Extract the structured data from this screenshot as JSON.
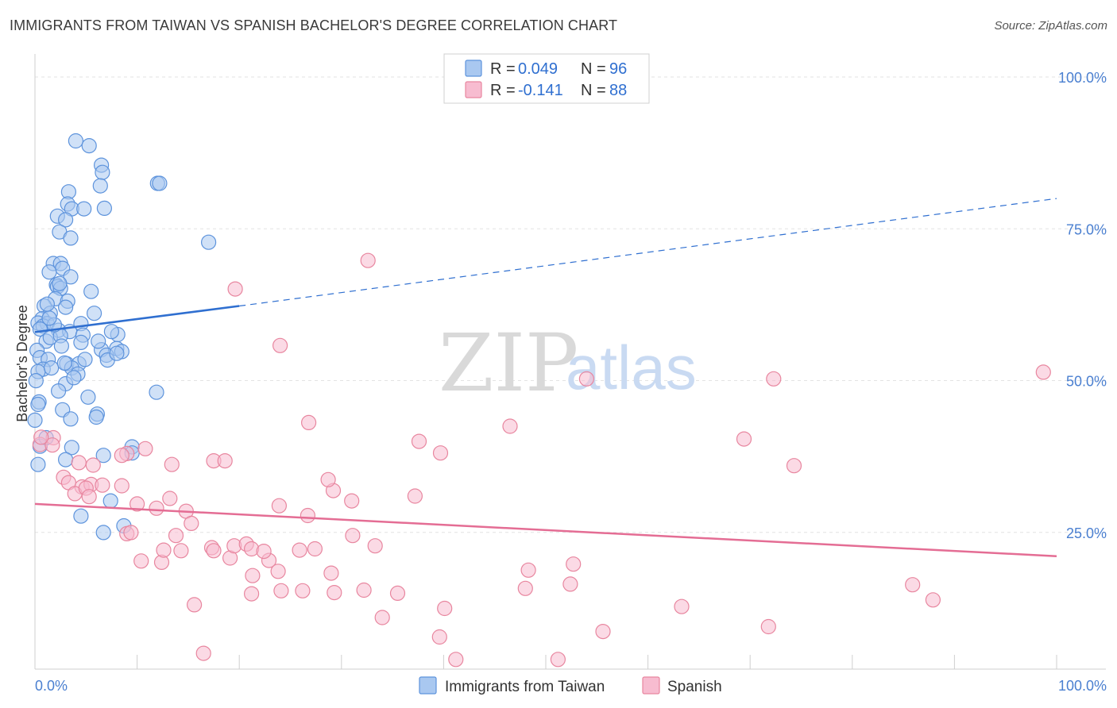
{
  "header": {
    "title": "IMMIGRANTS FROM TAIWAN VS SPANISH BACHELOR'S DEGREE CORRELATION CHART",
    "source": "Source: ZipAtlas.com"
  },
  "watermark": {
    "part1": "ZIP",
    "part2": "atlas"
  },
  "colors": {
    "taiwan_fill": "#a9c8f0",
    "taiwan_stroke": "#5d93dc",
    "taiwan_line": "#2f6fd0",
    "spanish_fill": "#f7bcd0",
    "spanish_stroke": "#e8869f",
    "spanish_line": "#e46d94",
    "grid": "#e3e3e3",
    "tick_text": "#4a7fd0"
  },
  "chart_data": {
    "type": "scatter",
    "title": "IMMIGRANTS FROM TAIWAN VS SPANISH BACHELOR'S DEGREE CORRELATION CHART",
    "xlabel": "",
    "ylabel": "Bachelor's Degree",
    "xlim": [
      0,
      100
    ],
    "ylim": [
      0,
      100
    ],
    "x_tick_labels": [
      "0.0%",
      "100.0%"
    ],
    "y_tick_labels": [
      "100.0%",
      "75.0%",
      "50.0%",
      "25.0%"
    ],
    "y_ticks": [
      100,
      75,
      50,
      25
    ],
    "grid": true,
    "legend": {
      "placement": "top-center",
      "entries": [
        {
          "r_label": "R = ",
          "r_value": "0.049",
          "n_label": "N = ",
          "n_value": "96"
        },
        {
          "r_label": "R = ",
          "r_value": "-0.141",
          "n_label": "N = ",
          "n_value": "88"
        }
      ]
    },
    "bottom_legend": [
      "Immigrants from Taiwan",
      "Spanish"
    ],
    "series": [
      {
        "name": "Immigrants from Taiwan",
        "trend": {
          "x0": 0,
          "y0": 55.5,
          "x1": 20,
          "y1": 59.8,
          "dash_x1": 100,
          "dash_y1": 77.5
        },
        "points": [
          [
            4,
            87
          ],
          [
            5.3,
            86.2
          ],
          [
            6.5,
            83
          ],
          [
            6.6,
            81.8
          ],
          [
            6.4,
            79.6
          ],
          [
            12,
            80
          ],
          [
            12.2,
            80
          ],
          [
            3.3,
            78.6
          ],
          [
            3.2,
            76.6
          ],
          [
            3.6,
            75.8
          ],
          [
            4.8,
            75.8
          ],
          [
            6.8,
            75.9
          ],
          [
            2.2,
            74.6
          ],
          [
            3,
            74
          ],
          [
            2.4,
            72
          ],
          [
            3.5,
            71
          ],
          [
            17,
            70.3
          ],
          [
            1.8,
            66.8
          ],
          [
            2.5,
            66.8
          ],
          [
            2.7,
            66
          ],
          [
            1.4,
            65.4
          ],
          [
            3.5,
            64.6
          ],
          [
            2.1,
            63.3
          ],
          [
            2.2,
            63
          ],
          [
            2.5,
            62.7
          ],
          [
            5.5,
            62.2
          ],
          [
            2,
            61
          ],
          [
            3.2,
            60.6
          ],
          [
            0.9,
            59.8
          ],
          [
            3,
            59.6
          ],
          [
            1.5,
            58.6
          ],
          [
            0.7,
            57.7
          ],
          [
            0.3,
            57
          ],
          [
            1.2,
            56.9
          ],
          [
            4.5,
            56.9
          ],
          [
            0.8,
            56.5
          ],
          [
            0.5,
            56
          ],
          [
            2.3,
            55.8
          ],
          [
            3.4,
            55.6
          ],
          [
            4.7,
            55
          ],
          [
            8.1,
            55.1
          ],
          [
            1.1,
            54
          ],
          [
            1.5,
            54.6
          ],
          [
            2.5,
            54.9
          ],
          [
            4.5,
            53.8
          ],
          [
            0.2,
            52.5
          ],
          [
            6.5,
            52.6
          ],
          [
            8,
            52.8
          ],
          [
            8.5,
            52.3
          ],
          [
            7,
            51.7
          ],
          [
            7.1,
            50.9
          ],
          [
            8,
            52
          ],
          [
            0.5,
            51.3
          ],
          [
            1.3,
            51
          ],
          [
            3.1,
            50.3
          ],
          [
            4.3,
            50.3
          ],
          [
            0.8,
            49.4
          ],
          [
            0.3,
            49
          ],
          [
            1.6,
            49.6
          ],
          [
            3.6,
            49.6
          ],
          [
            4.2,
            48.6
          ],
          [
            3,
            47
          ],
          [
            2.3,
            45.8
          ],
          [
            11.9,
            45.6
          ],
          [
            0.4,
            44
          ],
          [
            0.3,
            43.6
          ],
          [
            2.7,
            42.7
          ],
          [
            6.1,
            42
          ],
          [
            3.5,
            41.2
          ],
          [
            6,
            41.5
          ],
          [
            0,
            41
          ],
          [
            3.6,
            36.5
          ],
          [
            9.5,
            36.6
          ],
          [
            6.7,
            35.2
          ],
          [
            9.5,
            35.6
          ],
          [
            3,
            34.5
          ],
          [
            0.3,
            33.7
          ],
          [
            7.4,
            27.7
          ],
          [
            4.5,
            25.2
          ],
          [
            8.7,
            23.6
          ],
          [
            6.7,
            22.5
          ],
          [
            0.5,
            36.7
          ],
          [
            1.1,
            38.1
          ],
          [
            1.9,
            56.7
          ],
          [
            1.4,
            57.8
          ],
          [
            2.9,
            50.4
          ],
          [
            4.9,
            51
          ],
          [
            2.6,
            53.2
          ],
          [
            5.8,
            58.6
          ],
          [
            1.2,
            60.1
          ],
          [
            6.2,
            54
          ],
          [
            7.5,
            55.6
          ],
          [
            3.8,
            48
          ],
          [
            0.1,
            47.5
          ],
          [
            5.2,
            44.8
          ],
          [
            2.4,
            63.5
          ]
        ]
      },
      {
        "name": "Spanish",
        "trend": {
          "x0": 0,
          "y0": 27.2,
          "x1": 100,
          "y1": 18.6
        },
        "points": [
          [
            0.5,
            37
          ],
          [
            1.8,
            38.1
          ],
          [
            1.7,
            36.9
          ],
          [
            0.6,
            38.2
          ],
          [
            9,
            35.5
          ],
          [
            10.8,
            36.3
          ],
          [
            2.8,
            31.6
          ],
          [
            4.3,
            34
          ],
          [
            5.7,
            33.6
          ],
          [
            8.5,
            35.2
          ],
          [
            13.4,
            33.7
          ],
          [
            17.5,
            34.3
          ],
          [
            18.6,
            34.3
          ],
          [
            3.3,
            30.7
          ],
          [
            4.6,
            30
          ],
          [
            5.5,
            30.4
          ],
          [
            6.6,
            30.3
          ],
          [
            8.5,
            30.2
          ],
          [
            3.9,
            28.9
          ],
          [
            5,
            29.8
          ],
          [
            5.3,
            28.4
          ],
          [
            10,
            27.2
          ],
          [
            13.2,
            28.1
          ],
          [
            14.8,
            26
          ],
          [
            11.9,
            26.5
          ],
          [
            23.9,
            26.9
          ],
          [
            26.7,
            25.3
          ],
          [
            29.2,
            29.4
          ],
          [
            31,
            27.7
          ],
          [
            37.2,
            28.5
          ],
          [
            28.7,
            31.2
          ],
          [
            37.6,
            37.5
          ],
          [
            39.7,
            35.6
          ],
          [
            26.8,
            40.6
          ],
          [
            46.5,
            40
          ],
          [
            54,
            47.8
          ],
          [
            72.3,
            47.8
          ],
          [
            69.4,
            37.9
          ],
          [
            74.3,
            33.5
          ],
          [
            98.7,
            48.9
          ],
          [
            32.6,
            67.3
          ],
          [
            19.6,
            62.6
          ],
          [
            24,
            53.3
          ],
          [
            15.3,
            24
          ],
          [
            9,
            22.3
          ],
          [
            9.4,
            22.5
          ],
          [
            10.4,
            17.8
          ],
          [
            12.4,
            17.6
          ],
          [
            12.6,
            19.6
          ],
          [
            14.3,
            19.5
          ],
          [
            17.3,
            20
          ],
          [
            17.5,
            19.5
          ],
          [
            19.1,
            18.3
          ],
          [
            19.5,
            20.3
          ],
          [
            20.7,
            20.6
          ],
          [
            21.2,
            19.8
          ],
          [
            22.9,
            17.9
          ],
          [
            22.4,
            19.4
          ],
          [
            25.9,
            19.6
          ],
          [
            27.4,
            19.8
          ],
          [
            31.1,
            22
          ],
          [
            33.3,
            20.3
          ],
          [
            21.3,
            15.4
          ],
          [
            23.8,
            16.1
          ],
          [
            29,
            15.8
          ],
          [
            21.2,
            12.4
          ],
          [
            24.1,
            12.9
          ],
          [
            26.2,
            12.9
          ],
          [
            29.3,
            12.6
          ],
          [
            32.2,
            13
          ],
          [
            35.5,
            12.5
          ],
          [
            15.6,
            10.6
          ],
          [
            34,
            8.5
          ],
          [
            40.1,
            10
          ],
          [
            39.6,
            5.3
          ],
          [
            41.2,
            1.6
          ],
          [
            51.2,
            1.6
          ],
          [
            55.6,
            6.2
          ],
          [
            63.3,
            10.3
          ],
          [
            71.8,
            7
          ],
          [
            48.3,
            16.3
          ],
          [
            52.7,
            17.3
          ],
          [
            48,
            13.3
          ],
          [
            52.4,
            14
          ],
          [
            85.9,
            13.9
          ],
          [
            87.9,
            11.4
          ],
          [
            16.5,
            2.6
          ],
          [
            13.8,
            22
          ]
        ]
      }
    ]
  }
}
